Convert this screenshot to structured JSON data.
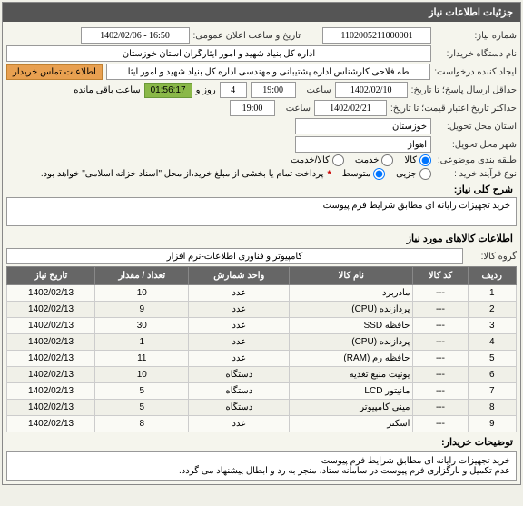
{
  "panel_title": "جزئیات اطلاعات نیاز",
  "need_number_label": "شماره نیاز:",
  "need_number": "1102005211000001",
  "announce_date_label": "تاریخ و ساعت اعلان عمومی:",
  "announce_date": "1402/02/06 - 16:50",
  "buyer_label": "نام دستگاه خریدار:",
  "buyer": "اداره کل بنیاد شهید و امور ایثارگران استان خوزستان",
  "creator_label": "ایجاد کننده درخواست:",
  "creator": "طه فلاحی کارشناس اداره پشتیبانی و مهندسی اداره کل بنیاد شهید و امور ایثا",
  "contact_badge": "اطلاعات تماس خریدار",
  "deadline_label": "حداقل ارسال پاسخ؛ تا تاریخ:",
  "deadline_date": "1402/02/10",
  "time_label": "ساعت",
  "deadline_time": "19:00",
  "days": "4",
  "days_label": "روز و",
  "remaining_time": "01:56:17",
  "remaining_label": "ساعت باقی مانده",
  "validity_label": "حداکثر تاریخ اعتبار قیمت؛ تا تاریخ:",
  "validity_date": "1402/02/21",
  "validity_time": "19:00",
  "province_label": "استان محل تحویل:",
  "province": "خوزستان",
  "city_label": "شهر محل تحویل:",
  "city": "اهواز",
  "category_label": "طبقه بندی موضوعی:",
  "cat_goods": "کالا",
  "cat_service": "خدمت",
  "cat_both": "کالا/خدمت",
  "process_label": "نوع فرآیند خرید :",
  "proc_small": "جزیی",
  "proc_medium": "متوسط",
  "payment_star": "*",
  "payment_note": "پرداخت تمام یا بخشی از مبلغ خرید،از محل \"اسناد خزانه اسلامی\" خواهد بود.",
  "desc_title": "شرح کلی نیاز:",
  "desc_text": "خرید تجهیزات رایانه ای مطابق شرایط فرم پیوست",
  "items_title": "اطلاعات کالاهای مورد نیاز",
  "group_label": "گروه کالا:",
  "group_value": "کامپیوتر و فناوری اطلاعات-نرم افزار",
  "th_row": "ردیف",
  "th_code": "کد کالا",
  "th_name": "نام کالا",
  "th_unit": "واحد شمارش",
  "th_qty": "تعداد / مقدار",
  "th_date": "تاریخ نیاز",
  "unit_adad": "عدد",
  "unit_dastgah": "دستگاه",
  "rows": [
    {
      "r": "1",
      "code": "---",
      "name": "مادربرد",
      "unit": "عدد",
      "qty": "10",
      "date": "1402/02/13"
    },
    {
      "r": "2",
      "code": "---",
      "name": "پردازنده (CPU)",
      "unit": "عدد",
      "qty": "9",
      "date": "1402/02/13"
    },
    {
      "r": "3",
      "code": "---",
      "name": "حافظه SSD",
      "unit": "عدد",
      "qty": "30",
      "date": "1402/02/13"
    },
    {
      "r": "4",
      "code": "---",
      "name": "پردازنده (CPU)",
      "unit": "عدد",
      "qty": "1",
      "date": "1402/02/13"
    },
    {
      "r": "5",
      "code": "---",
      "name": "حافظه رم (RAM)",
      "unit": "عدد",
      "qty": "11",
      "date": "1402/02/13"
    },
    {
      "r": "6",
      "code": "---",
      "name": "یونیت منبع تغذیه",
      "unit": "دستگاه",
      "qty": "10",
      "date": "1402/02/13"
    },
    {
      "r": "7",
      "code": "---",
      "name": "مانیتور LCD",
      "unit": "دستگاه",
      "qty": "5",
      "date": "1402/02/13"
    },
    {
      "r": "8",
      "code": "---",
      "name": "مینی کامپیوتر",
      "unit": "دستگاه",
      "qty": "5",
      "date": "1402/02/13"
    },
    {
      "r": "9",
      "code": "---",
      "name": "اسکنر",
      "unit": "عدد",
      "qty": "8",
      "date": "1402/02/13"
    }
  ],
  "explain_title": "توضیحات خریدار:",
  "explain_line1": "خرید تجهیزات رایانه ای مطابق شرایط فرم پیوست",
  "explain_line2": "عدم تکمیل و بارگزاری فرم پیوست در سامانه ستاد، منجر به رد و ابطال پیشنهاد می گردد."
}
